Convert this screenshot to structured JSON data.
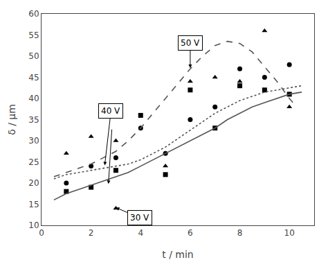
{
  "chart_data": {
    "type": "scatter",
    "xlabel": "t / min",
    "ylabel": "δ / μm",
    "xlim": [
      0,
      11
    ],
    "ylim": [
      10,
      60
    ],
    "xticks": [
      0,
      2,
      4,
      6,
      8,
      10
    ],
    "yticks": [
      10,
      15,
      20,
      25,
      30,
      35,
      40,
      45,
      50,
      55,
      60
    ],
    "grid": false,
    "series": [
      {
        "type": "scatter",
        "marker": "circle",
        "color": "black",
        "x": [
          1,
          2,
          3,
          4,
          5,
          6,
          7,
          8,
          9,
          10
        ],
        "values": [
          20,
          24,
          26,
          33,
          27,
          35,
          38,
          47,
          45,
          48
        ]
      },
      {
        "type": "scatter",
        "marker": "square",
        "color": "black",
        "x": [
          1,
          2,
          3,
          4,
          5,
          6,
          7,
          8,
          9,
          10
        ],
        "values": [
          18,
          19,
          23,
          36,
          22,
          42,
          33,
          43,
          42,
          41
        ]
      },
      {
        "type": "scatter",
        "marker": "triangle-up",
        "color": "black",
        "x": [
          1,
          2,
          3,
          3,
          5,
          6,
          7,
          8,
          9,
          10
        ],
        "values": [
          27,
          31,
          30,
          14,
          24,
          44,
          45,
          44,
          56,
          38
        ]
      },
      {
        "type": "line",
        "line_style": "solid",
        "color": "#555555",
        "x": [
          0.5,
          1,
          1.5,
          2,
          2.5,
          3,
          3.5,
          4,
          4.5,
          5,
          5.5,
          6,
          6.5,
          7,
          7.5,
          8,
          8.5,
          9,
          9.5,
          10,
          10.5
        ],
        "values": [
          16.0,
          17.5,
          18.5,
          19.5,
          20.5,
          21.5,
          22.5,
          24,
          25.5,
          27,
          28.5,
          30,
          31.5,
          33,
          35,
          36.5,
          38,
          39,
          40,
          41,
          41.5
        ]
      },
      {
        "type": "line",
        "line_style": "dot",
        "color": "#555555",
        "x": [
          0.5,
          1,
          1.5,
          2,
          2.5,
          3,
          3.5,
          4,
          4.5,
          5,
          5.5,
          6,
          6.5,
          7,
          7.5,
          8,
          8.5,
          9,
          9.5,
          10,
          10.5
        ],
        "values": [
          21.0,
          22.0,
          22.5,
          23.0,
          23.5,
          24.0,
          24.5,
          25.5,
          27,
          28.5,
          30.5,
          32.5,
          34.5,
          36.5,
          38,
          39.5,
          40.5,
          41.5,
          42,
          42.5,
          43
        ]
      },
      {
        "type": "line",
        "line_style": "dash",
        "color": "#555555",
        "x": [
          0.5,
          1,
          1.5,
          2,
          2.5,
          3,
          3.5,
          4,
          4.5,
          5,
          5.5,
          6,
          6.5,
          7,
          7.5,
          8,
          8.5,
          9,
          9.5,
          10,
          10.3
        ],
        "values": [
          21.5,
          22.5,
          23.5,
          24.5,
          26,
          27.5,
          30,
          33,
          36.5,
          40,
          43.5,
          47,
          50,
          52.5,
          53.5,
          53,
          51,
          47.5,
          44,
          40,
          38
        ]
      }
    ],
    "annotations": [
      {
        "text": "50 V",
        "arrows": [
          {
            "x": 6.0,
            "y": 47.2
          }
        ]
      },
      {
        "text": "40 V",
        "arrows": [
          {
            "x": 2.55,
            "y": 24.2
          },
          {
            "x": 2.7,
            "y": 19.8
          }
        ]
      },
      {
        "text": "30 V",
        "arrows": [
          {
            "x": 3.0,
            "y": 14.2
          }
        ]
      }
    ]
  }
}
